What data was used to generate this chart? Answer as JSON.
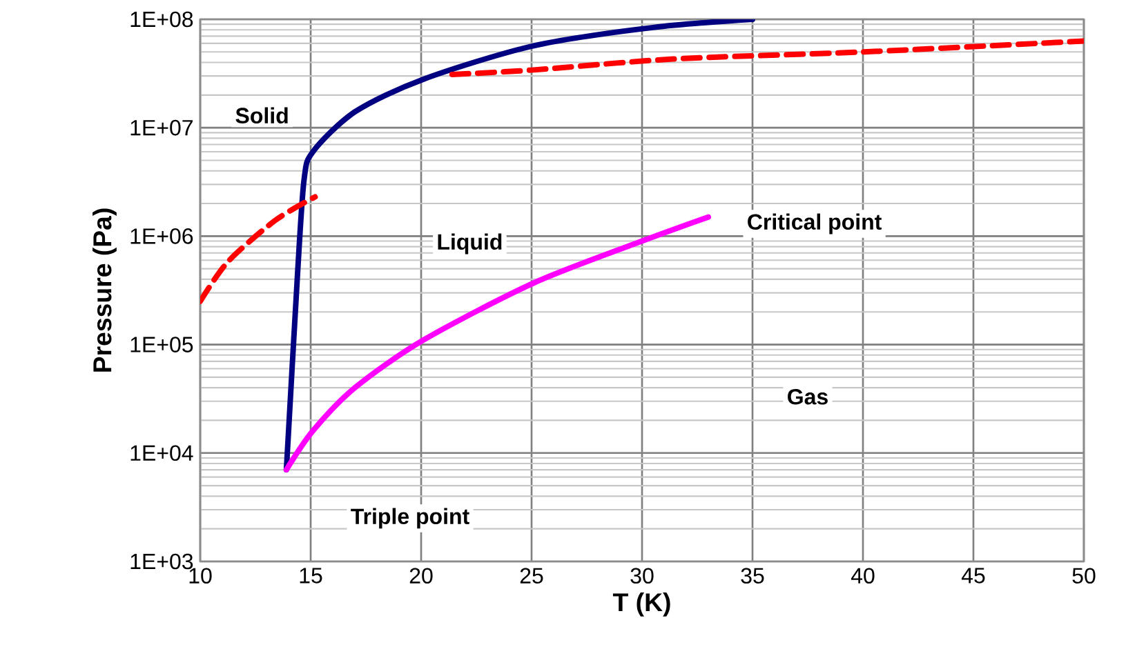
{
  "chart_data": {
    "type": "line",
    "xlabel": "T (K)",
    "ylabel": "Pressure (Pa)",
    "log": "y",
    "grid": true,
    "marker": "none",
    "xlim": [
      10,
      50
    ],
    "xticks": [
      10,
      15,
      20,
      25,
      30,
      35,
      40,
      45,
      50
    ],
    "ylim": [
      1000,
      100000000
    ],
    "yticks": [
      {
        "value": 1000,
        "label": "1E+03"
      },
      {
        "value": 10000,
        "label": "1E+04"
      },
      {
        "value": 100000,
        "label": "1E+05"
      },
      {
        "value": 1000000,
        "label": "1E+06"
      },
      {
        "value": 10000000,
        "label": "1E+07"
      },
      {
        "value": 100000000,
        "label": "1E+08"
      }
    ],
    "series": [
      {
        "color": "#000080",
        "line_style": "solid",
        "x": [
          13.9,
          14.4,
          14.7,
          15.1,
          17,
          20.1,
          25.1,
          30.5,
          35
        ],
        "values": [
          7000,
          430000,
          3300000,
          6000000,
          14000000,
          28000000,
          57000000,
          84000000,
          100000000
        ]
      },
      {
        "color": "#ff0000",
        "line_style": "dashed",
        "x": [
          10,
          11.25,
          13.4,
          15.2
        ],
        "values": [
          250000,
          580000,
          1400000,
          2300000
        ]
      },
      {
        "color": "#ff0000",
        "line_style": "dashed",
        "x": [
          21.4,
          25,
          31.4,
          40,
          50
        ],
        "values": [
          31000000,
          34000000,
          43000000,
          50000000,
          63000000
        ]
      },
      {
        "color": "#ff00ff",
        "line_style": "solid",
        "x": [
          13.9,
          15.1,
          17,
          20.1,
          25.1,
          30,
          33
        ],
        "values": [
          7000,
          16000,
          40000,
          110000,
          370000,
          900000,
          1500000
        ]
      }
    ],
    "annotations": [
      "Solid",
      "Liquid",
      "Gas",
      "Triple point",
      "Critical point"
    ]
  }
}
